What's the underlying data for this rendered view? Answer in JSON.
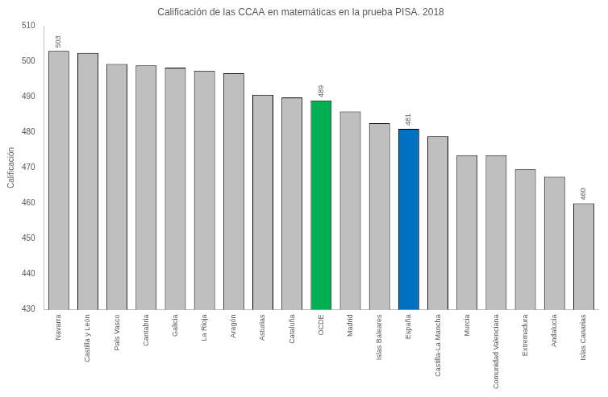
{
  "chart_data": {
    "type": "bar",
    "title": "Calificación de las CCAA en matemáticas en la prueba PISA. 2018",
    "y_label": "Calificación",
    "categories": [
      "Navarra",
      "Castilla y León",
      "País Vasco",
      "Cantabria",
      "Galicia",
      "La Rioja",
      "Aragón",
      "Asturias",
      "Cataluña",
      "OCDE",
      "Madrid",
      "Islas Baleares",
      "España",
      "Castilla-La Mancha",
      "Murcia",
      "Comunidad Valenciana",
      "Extremadura",
      "Andalucía",
      "Islas Canarias"
    ],
    "values": [
      503,
      502.4,
      499.3,
      498.9,
      498.3,
      497.4,
      496.7,
      490.6,
      489.9,
      489,
      485.9,
      482.6,
      481,
      478.9,
      473.6,
      473.6,
      469.6,
      467.5,
      460
    ],
    "value_labels": [
      "503",
      null,
      null,
      null,
      null,
      null,
      null,
      null,
      null,
      "489",
      null,
      null,
      "481",
      null,
      null,
      null,
      null,
      null,
      "460"
    ],
    "colors": [
      "#bfbfbf",
      "#bfbfbf",
      "#bfbfbf",
      "#bfbfbf",
      "#bfbfbf",
      "#bfbfbf",
      "#bfbfbf",
      "#bfbfbf",
      "#bfbfbf",
      "#00b050",
      "#bfbfbf",
      "#bfbfbf",
      "#0070c0",
      "#bfbfbf",
      "#bfbfbf",
      "#bfbfbf",
      "#bfbfbf",
      "#bfbfbf",
      "#bfbfbf"
    ],
    "ylim": [
      430,
      510
    ],
    "yticks": [
      430,
      440,
      450,
      460,
      470,
      480,
      490,
      500,
      510
    ],
    "grid": false,
    "data_labels": true
  }
}
